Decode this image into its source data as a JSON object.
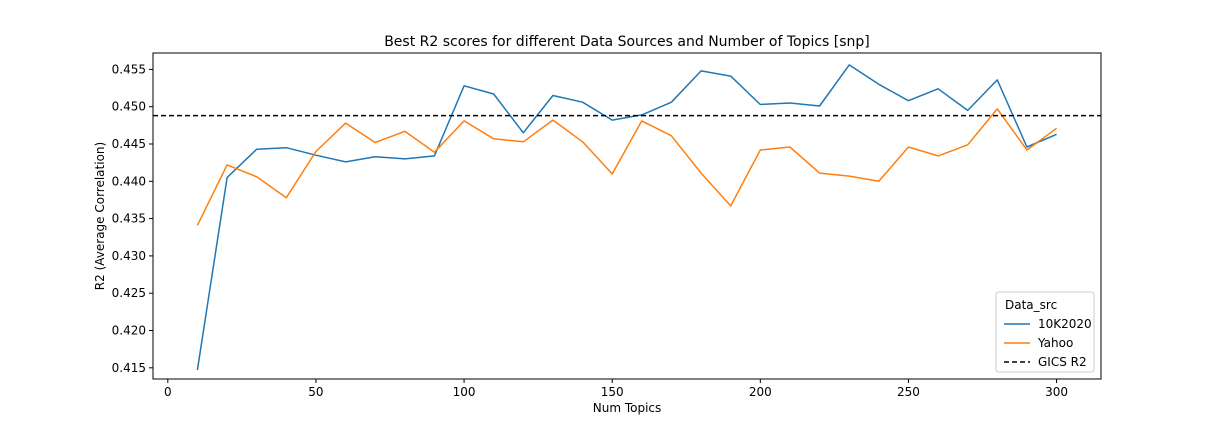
{
  "chart_data": {
    "type": "line",
    "title": "Best R2 scores for different Data Sources and Number of Topics [snp]",
    "xlabel": "Num Topics",
    "ylabel": "R2 (Average Correlation)",
    "xlim": [
      -5,
      315
    ],
    "ylim": [
      0.4135,
      0.4572
    ],
    "xticks": [
      0,
      50,
      100,
      150,
      200,
      250,
      300
    ],
    "yticks": [
      0.415,
      0.42,
      0.425,
      0.43,
      0.435,
      0.44,
      0.445,
      0.45,
      0.455
    ],
    "x": [
      10,
      20,
      30,
      40,
      50,
      60,
      70,
      80,
      90,
      100,
      110,
      120,
      130,
      140,
      150,
      160,
      170,
      180,
      190,
      200,
      210,
      220,
      230,
      240,
      250,
      260,
      270,
      280,
      290,
      300
    ],
    "series": [
      {
        "name": "10K2020",
        "color": "#1f77b4",
        "values": [
          0.4147,
          0.4405,
          0.4443,
          0.4445,
          0.4435,
          0.4426,
          0.4433,
          0.443,
          0.4434,
          0.4528,
          0.4517,
          0.4465,
          0.4515,
          0.4506,
          0.4482,
          0.4489,
          0.4506,
          0.4548,
          0.4541,
          0.4503,
          0.4505,
          0.4501,
          0.4556,
          0.453,
          0.4508,
          0.4524,
          0.4495,
          0.4536,
          0.4446,
          0.4463
        ]
      },
      {
        "name": "Yahoo",
        "color": "#ff7f0e",
        "values": [
          0.4341,
          0.4422,
          0.4406,
          0.4378,
          0.444,
          0.4478,
          0.4452,
          0.4467,
          0.4439,
          0.4481,
          0.4457,
          0.4453,
          0.4482,
          0.4453,
          0.441,
          0.4481,
          0.4461,
          0.4411,
          0.4367,
          0.4442,
          0.4446,
          0.4411,
          0.4407,
          0.44,
          0.4446,
          0.4434,
          0.4449,
          0.4497,
          0.4442,
          0.4471
        ]
      }
    ],
    "reference_line": {
      "name": "GICS R2",
      "value": 0.4488,
      "style": "dashed",
      "color": "#000000"
    },
    "legend": {
      "title": "Data_src",
      "placement": "lower-right"
    },
    "grid": false
  }
}
